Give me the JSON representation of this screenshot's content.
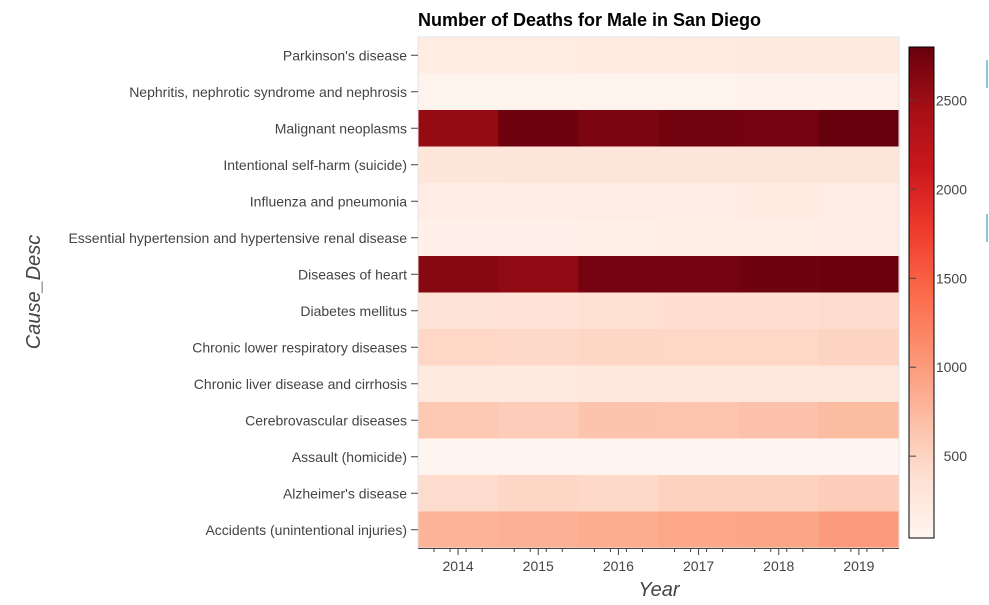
{
  "chart_data": {
    "type": "heatmap",
    "title": "Number of Deaths for Male in San Diego",
    "xlabel": "Year",
    "ylabel": "Cause_Desc",
    "x_categories": [
      "2014",
      "2015",
      "2016",
      "2017",
      "2018",
      "2019"
    ],
    "y_categories": [
      "Parkinson's disease",
      "Nephritis, nephrotic syndrome and nephrosis",
      "Malignant neoplasms",
      "Intentional self-harm (suicide)",
      "Influenza and pneumonia",
      "Essential hypertension and hypertensive renal disease",
      "Diseases of heart",
      "Diabetes mellitus",
      "Chronic lower respiratory diseases",
      "Chronic liver disease and cirrhosis",
      "Cerebrovascular diseases",
      "Assault (homicide)",
      "Alzheimer's disease",
      "Accidents (unintentional injuries)"
    ],
    "values": [
      [
        175,
        185,
        200,
        210,
        220,
        240
      ],
      [
        70,
        75,
        80,
        78,
        82,
        85
      ],
      [
        2550,
        2760,
        2690,
        2740,
        2720,
        2800
      ],
      [
        280,
        300,
        300,
        310,
        300,
        310
      ],
      [
        170,
        180,
        165,
        170,
        205,
        180
      ],
      [
        110,
        120,
        140,
        150,
        160,
        170
      ],
      [
        2620,
        2580,
        2720,
        2730,
        2760,
        2780
      ],
      [
        330,
        340,
        370,
        390,
        400,
        420
      ],
      [
        470,
        450,
        480,
        470,
        470,
        500
      ],
      [
        220,
        240,
        250,
        250,
        260,
        250
      ],
      [
        600,
        560,
        650,
        640,
        670,
        720
      ],
      [
        45,
        50,
        50,
        40,
        45,
        50
      ],
      [
        420,
        480,
        450,
        510,
        520,
        560
      ],
      [
        800,
        820,
        860,
        900,
        910,
        1000
      ]
    ],
    "colorbar": {
      "min": 40,
      "max": 2800,
      "ticks": [
        500,
        1000,
        1500,
        2000,
        2500
      ]
    },
    "colormap": [
      "#fff5f0",
      "#fee0d2",
      "#fcbba1",
      "#fc9272",
      "#fb6a4a",
      "#ef3b2c",
      "#cb181d",
      "#a50f15",
      "#67000d"
    ]
  }
}
